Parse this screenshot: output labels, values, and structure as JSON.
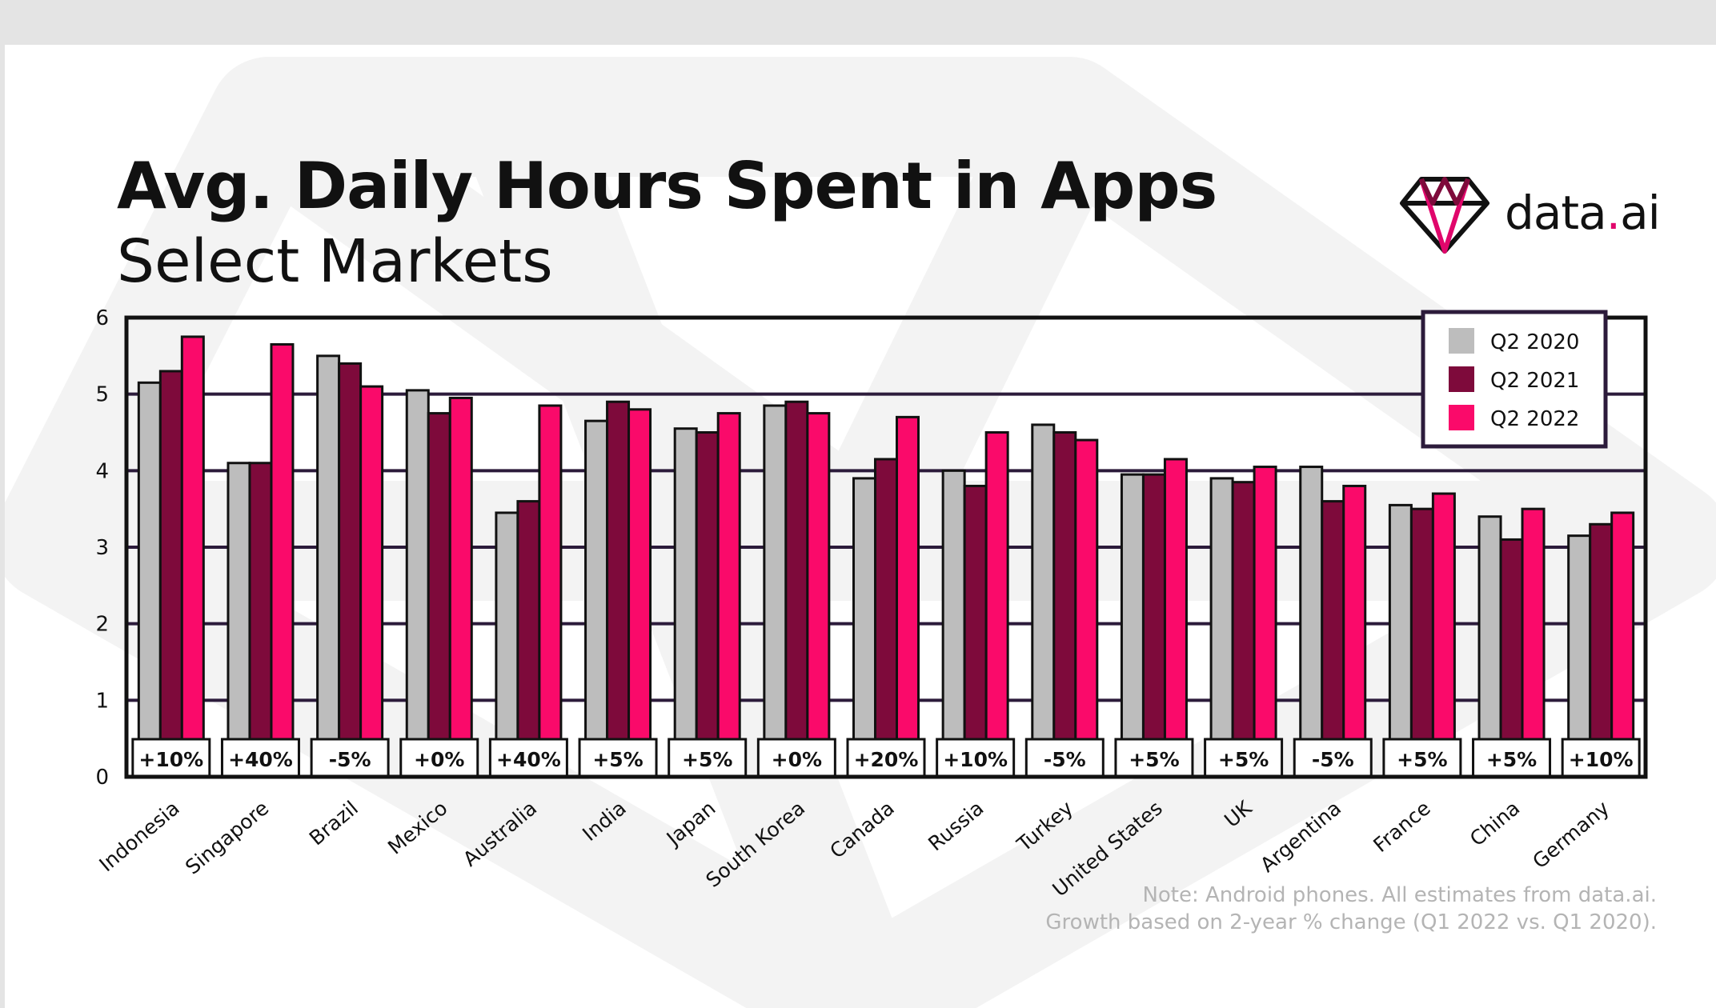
{
  "title": "Avg. Daily Hours Spent in Apps",
  "subtitle": "Select Markets",
  "brand": {
    "name_main": "data",
    "name_dot": ".",
    "name_suffix": "ai",
    "icon": "diamond-logo-icon"
  },
  "note": {
    "line1": "Note: Android phones. All estimates from data.ai.",
    "line2": "Growth based on 2-year % change (Q1 2022 vs. Q1 2020)."
  },
  "colors": {
    "q2_2020": "#bdbdbd",
    "q2_2021": "#7e0a3b",
    "q2_2022": "#fa0a6a",
    "frame": "#111111",
    "gridline": "#2c1b3b"
  },
  "chart_data": {
    "type": "bar",
    "title": "Avg. Daily Hours Spent in Apps",
    "subtitle": "Select Markets",
    "xlabel": "",
    "ylabel": "",
    "ylim": [
      0,
      6
    ],
    "yticks": [
      0,
      1,
      2,
      3,
      4,
      5,
      6
    ],
    "grid": true,
    "legend_position": "top-right",
    "categories": [
      "Indonesia",
      "Singapore",
      "Brazil",
      "Mexico",
      "Australia",
      "India",
      "Japan",
      "South Korea",
      "Canada",
      "Russia",
      "Turkey",
      "United States",
      "UK",
      "Argentina",
      "France",
      "China",
      "Germany"
    ],
    "series": [
      {
        "name": "Q2 2020",
        "color": "#bdbdbd",
        "values": [
          5.15,
          4.1,
          5.5,
          5.05,
          3.45,
          4.65,
          4.55,
          4.85,
          3.9,
          4.0,
          4.6,
          3.95,
          3.9,
          4.05,
          3.55,
          3.4,
          3.15
        ]
      },
      {
        "name": "Q2 2021",
        "color": "#7e0a3b",
        "values": [
          5.3,
          4.1,
          5.4,
          4.75,
          3.6,
          4.9,
          4.5,
          4.9,
          4.15,
          3.8,
          4.5,
          3.95,
          3.85,
          3.6,
          3.5,
          3.1,
          3.3
        ]
      },
      {
        "name": "Q2 2022",
        "color": "#fa0a6a",
        "values": [
          5.75,
          5.65,
          5.1,
          4.95,
          4.85,
          4.8,
          4.75,
          4.75,
          4.7,
          4.5,
          4.4,
          4.15,
          4.05,
          3.8,
          3.7,
          3.5,
          3.45
        ]
      }
    ],
    "annotations": [
      "+10%",
      "+40%",
      "-5%",
      "+0%",
      "+40%",
      "+5%",
      "+5%",
      "+0%",
      "+20%",
      "+10%",
      "-5%",
      "+5%",
      "+5%",
      "-5%",
      "+5%",
      "+5%",
      "+10%"
    ]
  }
}
